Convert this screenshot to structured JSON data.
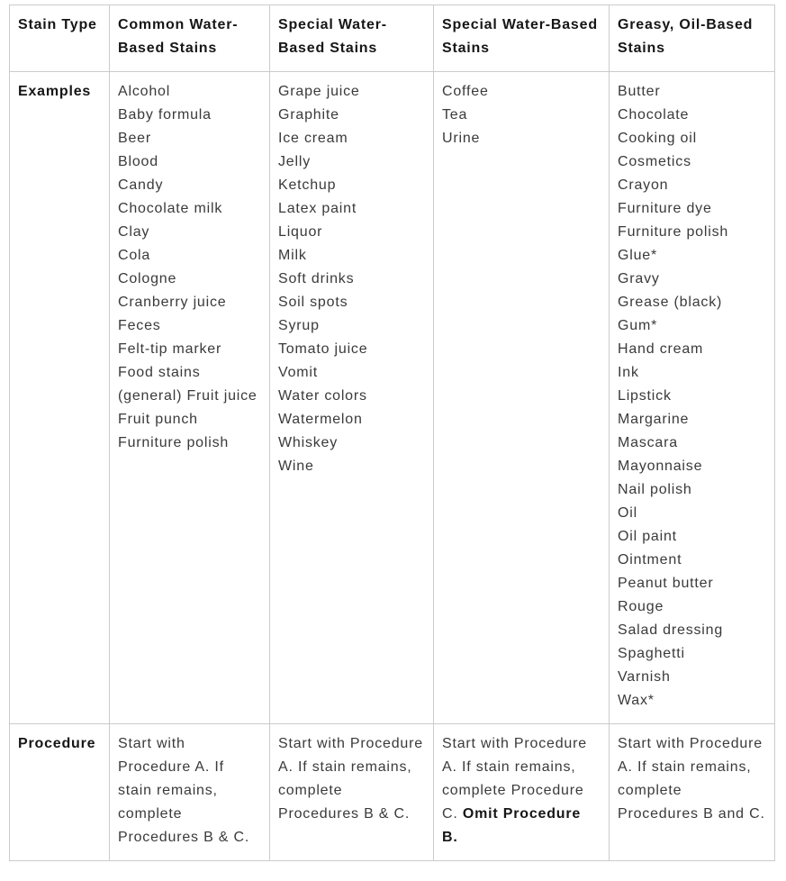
{
  "table": {
    "title_semantic": "stain-removal-guide",
    "columns": [
      {
        "header": "Stain Type"
      },
      {
        "header": "Common Water-Based Stains"
      },
      {
        "header": "Special Water-Based Stains"
      },
      {
        "header": "Special Water-Based Stains"
      },
      {
        "header": "Greasy, Oil-Based Stains"
      }
    ],
    "rows": [
      {
        "label": "Examples",
        "cells": [
          {
            "items": [
              "Alcohol",
              "Baby formula",
              "Beer",
              "Blood",
              "Candy",
              "Chocolate milk",
              "Clay",
              "Cola",
              "Cologne",
              "Cranberry juice",
              "Feces",
              "Felt-tip marker",
              "Food stains (general) Fruit juice",
              "Fruit punch",
              "Furniture polish"
            ]
          },
          {
            "items": [
              "Grape juice",
              "Graphite",
              "Ice cream",
              "Jelly",
              "Ketchup",
              "Latex paint",
              "Liquor",
              "Milk",
              "Soft drinks",
              "Soil spots",
              "Syrup",
              "Tomato juice",
              "Vomit",
              "Water colors",
              "Watermelon",
              "Whiskey",
              "Wine"
            ]
          },
          {
            "items": [
              "Coffee",
              "Tea",
              "Urine"
            ]
          },
          {
            "items": [
              "Butter",
              "Chocolate",
              "Cooking oil",
              "Cosmetics",
              "Crayon",
              "Furniture dye",
              "Furniture polish",
              "Glue*",
              "Gravy",
              "Grease (black)",
              "Gum*",
              "Hand cream",
              "Ink",
              "Lipstick",
              "Margarine",
              "Mascara",
              "Mayonnaise",
              "Nail polish",
              "Oil",
              "Oil paint",
              "Ointment",
              "Peanut butter",
              "Rouge",
              "Salad dressing",
              "Spaghetti",
              "Varnish",
              "Wax*"
            ]
          }
        ]
      },
      {
        "label": "Procedure",
        "cells": [
          {
            "text": "Start with Procedure A. If stain remains, complete Procedures B & C."
          },
          {
            "text": "Start with Procedure A. If stain remains, complete Procedures B & C."
          },
          {
            "text": "Start with Procedure A. If stain remains, complete Procedure C. ",
            "bold_text": "Omit Procedure B."
          },
          {
            "text": "Start with Procedure A. If stain remains, complete Procedures B and C."
          }
        ]
      }
    ]
  }
}
